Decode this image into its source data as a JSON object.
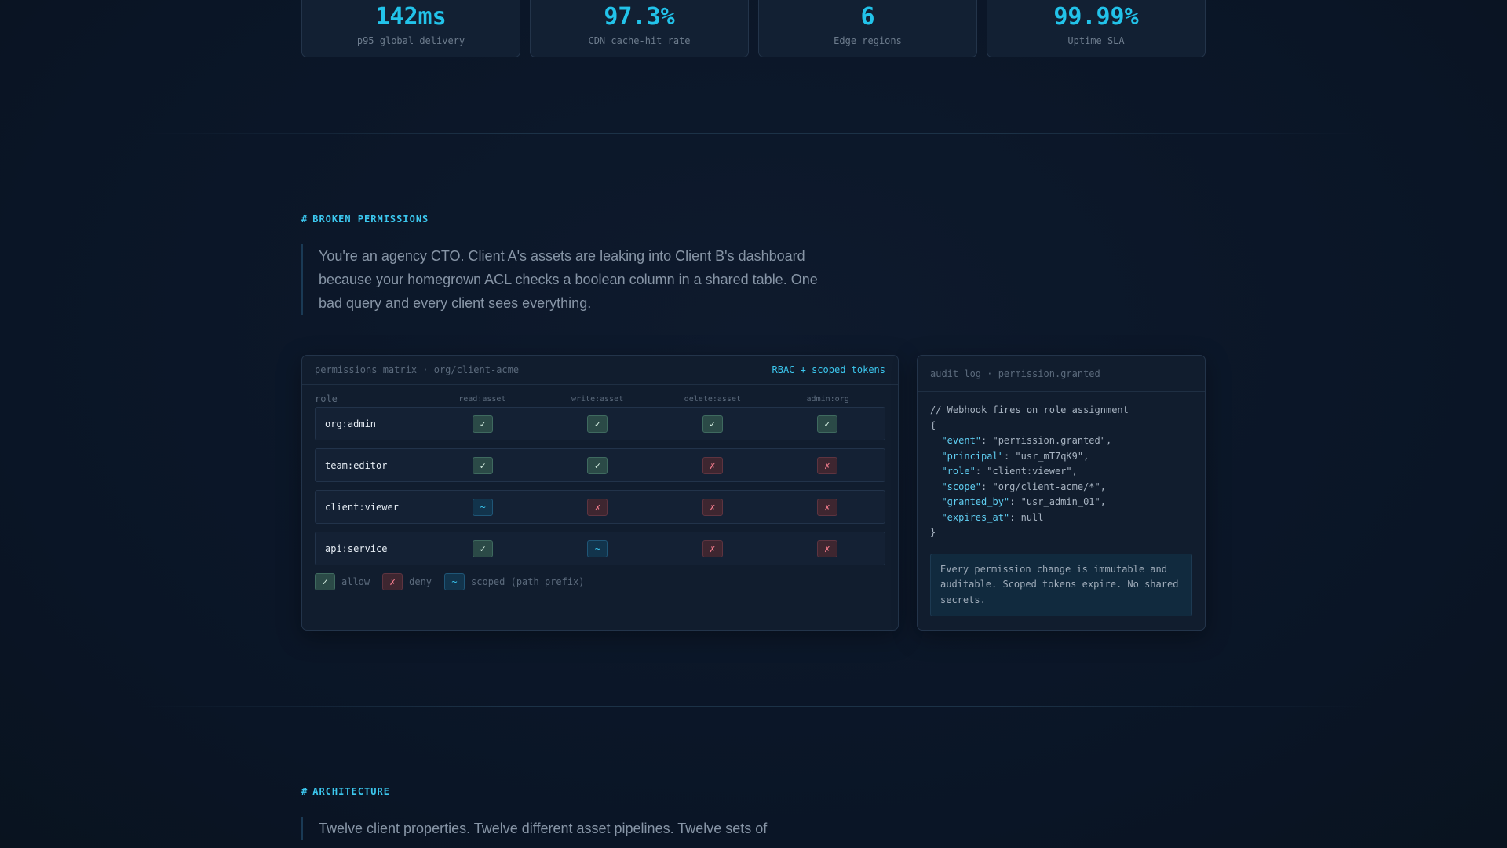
{
  "stats": [
    {
      "value": "142ms",
      "label": "p95 global delivery"
    },
    {
      "value": "97.3%",
      "label": "CDN cache-hit rate"
    },
    {
      "value": "6",
      "label": "Edge regions"
    },
    {
      "value": "99.99%",
      "label": "Uptime SLA"
    }
  ],
  "permissions_section": {
    "label": "BROKEN PERMISSIONS",
    "quote": "You're an agency CTO. Client A's assets are leaking into Client B's dashboard because your homegrown ACL checks a boolean column in a shared table. One bad query and every client sees everything."
  },
  "matrix": {
    "title": "permissions matrix · org/client-acme",
    "badge": "RBAC + scoped tokens",
    "role_header": "role",
    "columns": [
      "read:asset",
      "write:asset",
      "delete:asset",
      "admin:org"
    ],
    "rows": [
      {
        "role": "org:admin",
        "cells": [
          "allow",
          "allow",
          "allow",
          "allow"
        ]
      },
      {
        "role": "team:editor",
        "cells": [
          "allow",
          "allow",
          "deny",
          "deny"
        ]
      },
      {
        "role": "client:viewer",
        "cells": [
          "scoped",
          "deny",
          "deny",
          "deny"
        ]
      },
      {
        "role": "api:service",
        "cells": [
          "allow",
          "scoped",
          "deny",
          "deny"
        ]
      }
    ],
    "glyphs": {
      "allow": "✓",
      "deny": "✗",
      "scoped": "~"
    },
    "legend": [
      {
        "kind": "allow",
        "label": "allow"
      },
      {
        "kind": "deny",
        "label": "deny"
      },
      {
        "kind": "scoped",
        "label": "scoped (path prefix)"
      }
    ]
  },
  "audit": {
    "title": "audit log · permission.granted",
    "comment": "// Webhook fires on role assignment",
    "open_brace": "{",
    "close_brace": "}",
    "fields": [
      {
        "key": "\"event\"",
        "value": "\"permission.granted\","
      },
      {
        "key": "\"principal\"",
        "value": "\"usr_mT7qK9\","
      },
      {
        "key": "\"role\"",
        "value": "\"client:viewer\","
      },
      {
        "key": "\"scope\"",
        "value": "\"org/client-acme/*\","
      },
      {
        "key": "\"granted_by\"",
        "value": "\"usr_admin_01\","
      },
      {
        "key": "\"expires_at\"",
        "value": "null"
      }
    ],
    "note": "Every permission change is immutable and auditable. Scoped tokens expire. No shared secrets."
  },
  "architecture_section": {
    "label": "ARCHITECTURE",
    "quote": "Twelve client properties. Twelve different asset pipelines. Twelve sets of"
  },
  "section_hash": "#"
}
